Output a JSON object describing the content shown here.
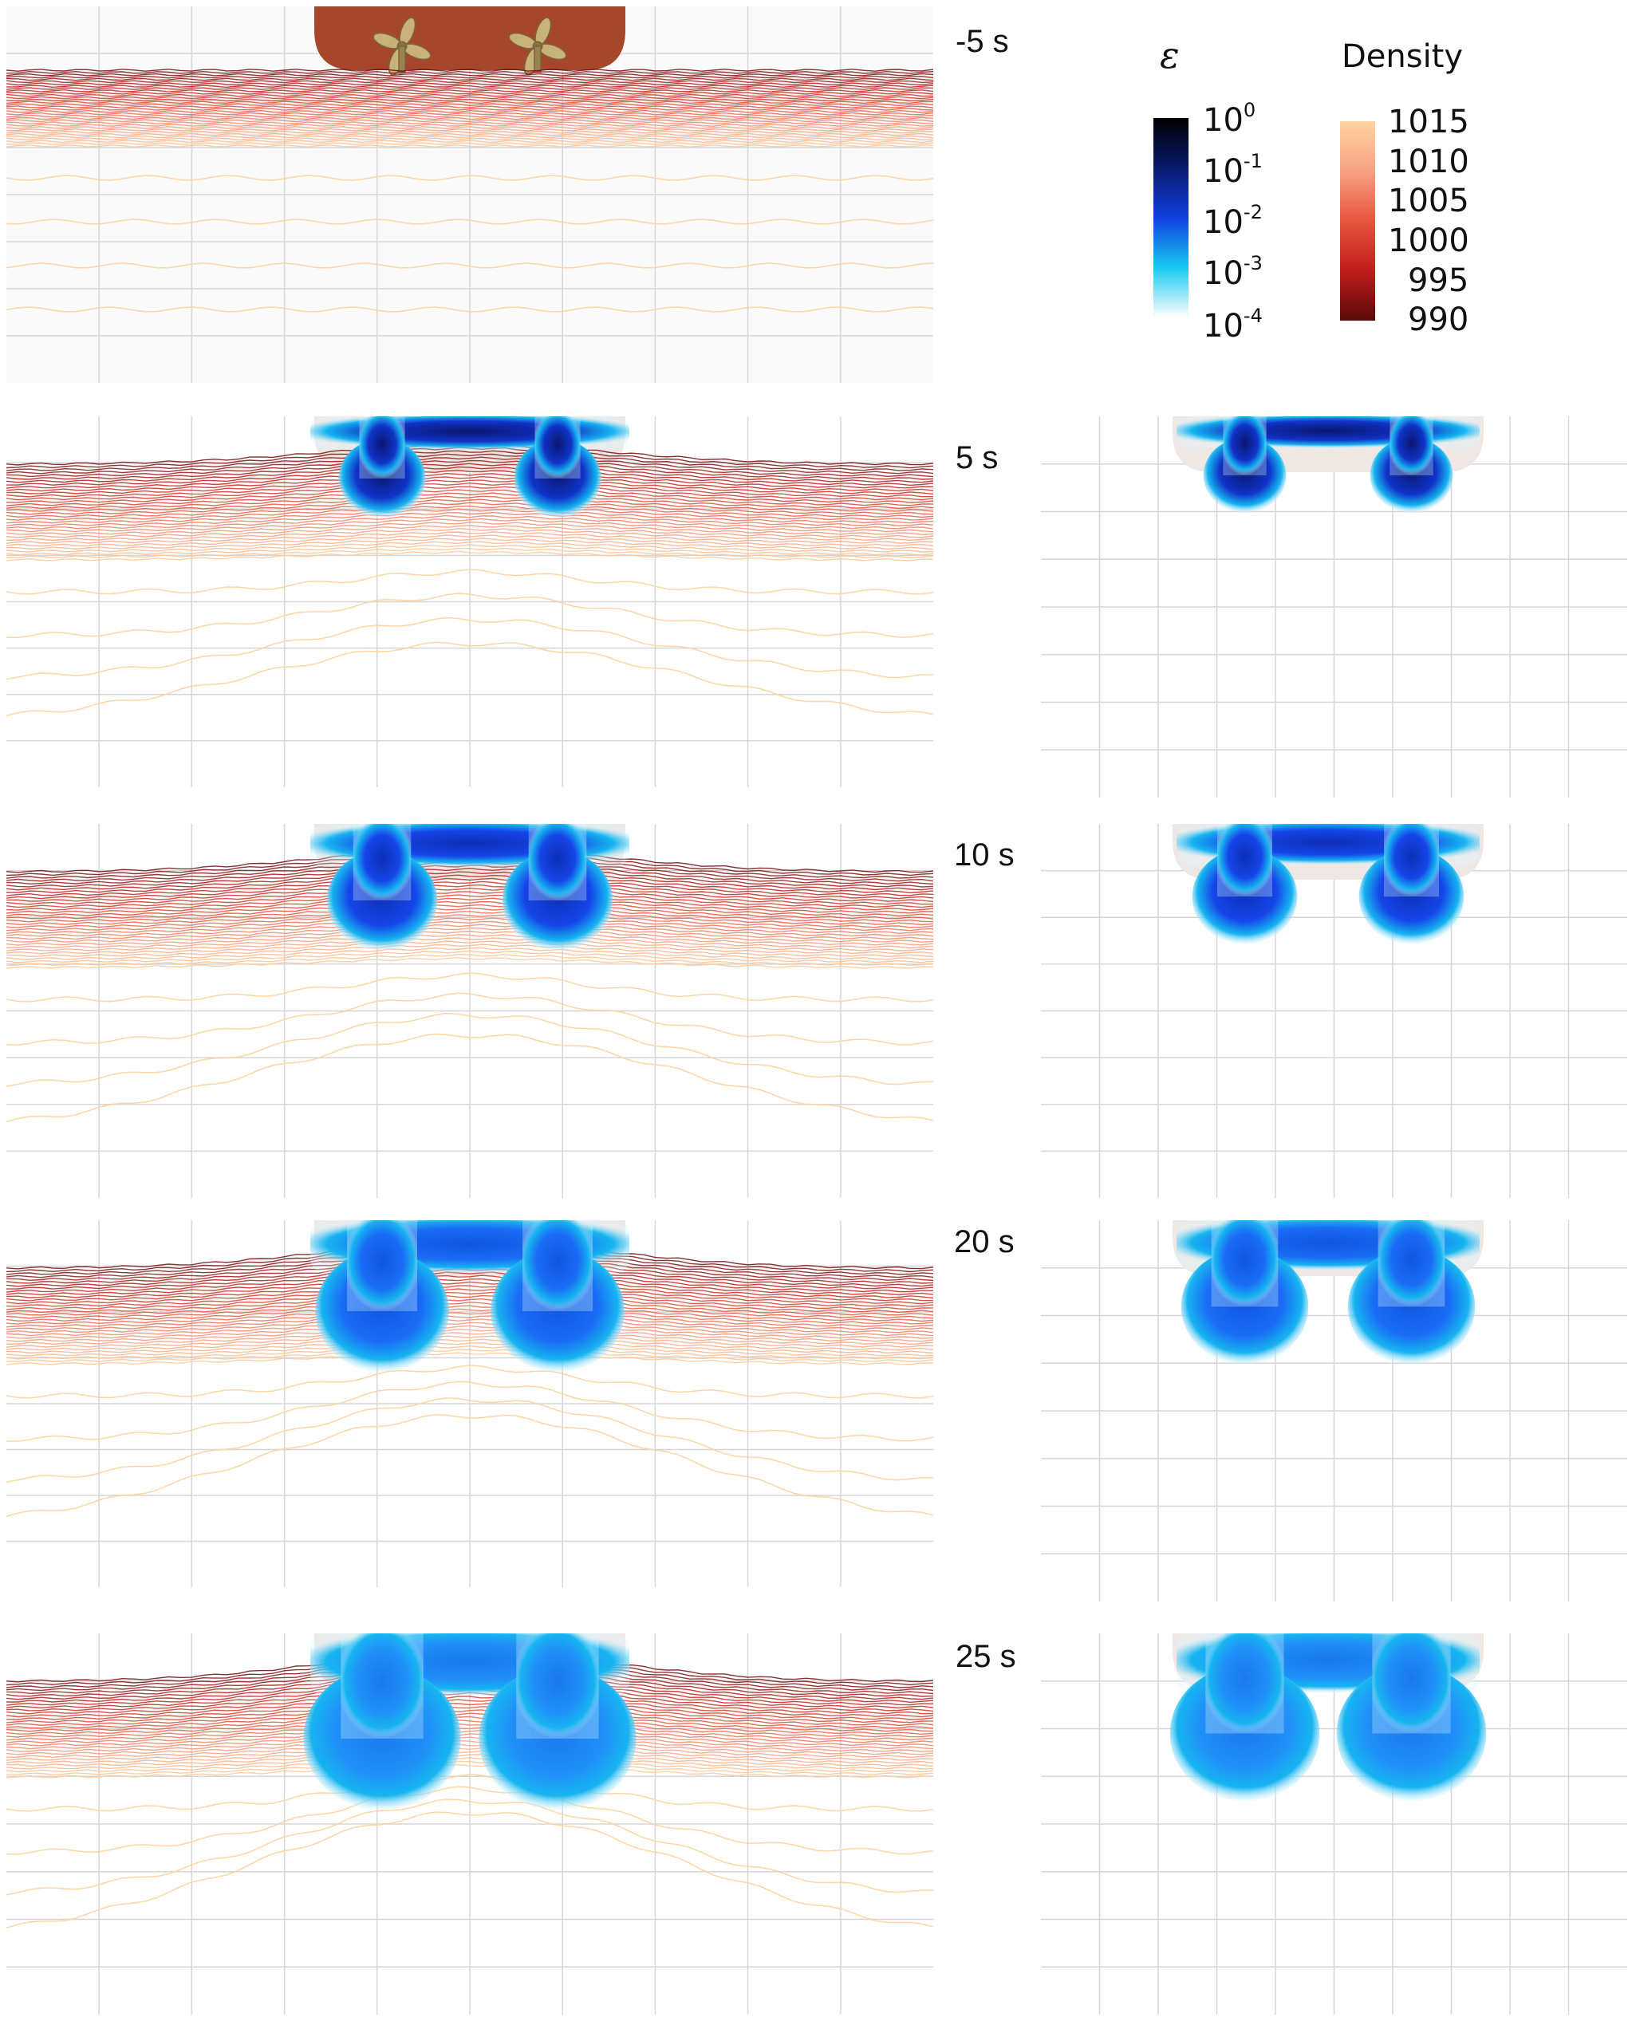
{
  "time_labels": [
    "-5 s",
    "5 s",
    "10 s",
    "20 s",
    "25 s"
  ],
  "epsilon_colorbar": {
    "title": "ε",
    "ticks": [
      {
        "base": "10",
        "exp": "0"
      },
      {
        "base": "10",
        "exp": "-1"
      },
      {
        "base": "10",
        "exp": "-2"
      },
      {
        "base": "10",
        "exp": "-3"
      },
      {
        "base": "10",
        "exp": "-4"
      }
    ],
    "colors": [
      "#000000",
      "#0a1a6e",
      "#1040e0",
      "#18c8f0",
      "#ffffff"
    ]
  },
  "density_colorbar": {
    "title": "Density",
    "ticks": [
      "1015",
      "1010",
      "1005",
      "1000",
      "995",
      "990"
    ],
    "colors": [
      "#fdd3a0",
      "#f7a184",
      "#e8553d",
      "#c01e1b",
      "#5a0a0a"
    ]
  },
  "colors": {
    "hull": "#a6472c",
    "hull_light": "#efe7e4",
    "propeller": "#c9b27a",
    "grid": "#d6d6d6"
  },
  "left_panels": [
    {
      "time": "-5 s",
      "plume_level": 0,
      "mode": "hull"
    },
    {
      "time": "5 s",
      "plume_level": 1,
      "mode": "plume"
    },
    {
      "time": "10 s",
      "plume_level": 2,
      "mode": "plume"
    },
    {
      "time": "20 s",
      "plume_level": 3,
      "mode": "plume"
    },
    {
      "time": "25 s",
      "plume_level": 4,
      "mode": "plume"
    }
  ],
  "right_panels": [
    {
      "time": "5 s",
      "plume_level": 1
    },
    {
      "time": "10 s",
      "plume_level": 2
    },
    {
      "time": "20 s",
      "plume_level": 3
    },
    {
      "time": "25 s",
      "plume_level": 4
    }
  ]
}
